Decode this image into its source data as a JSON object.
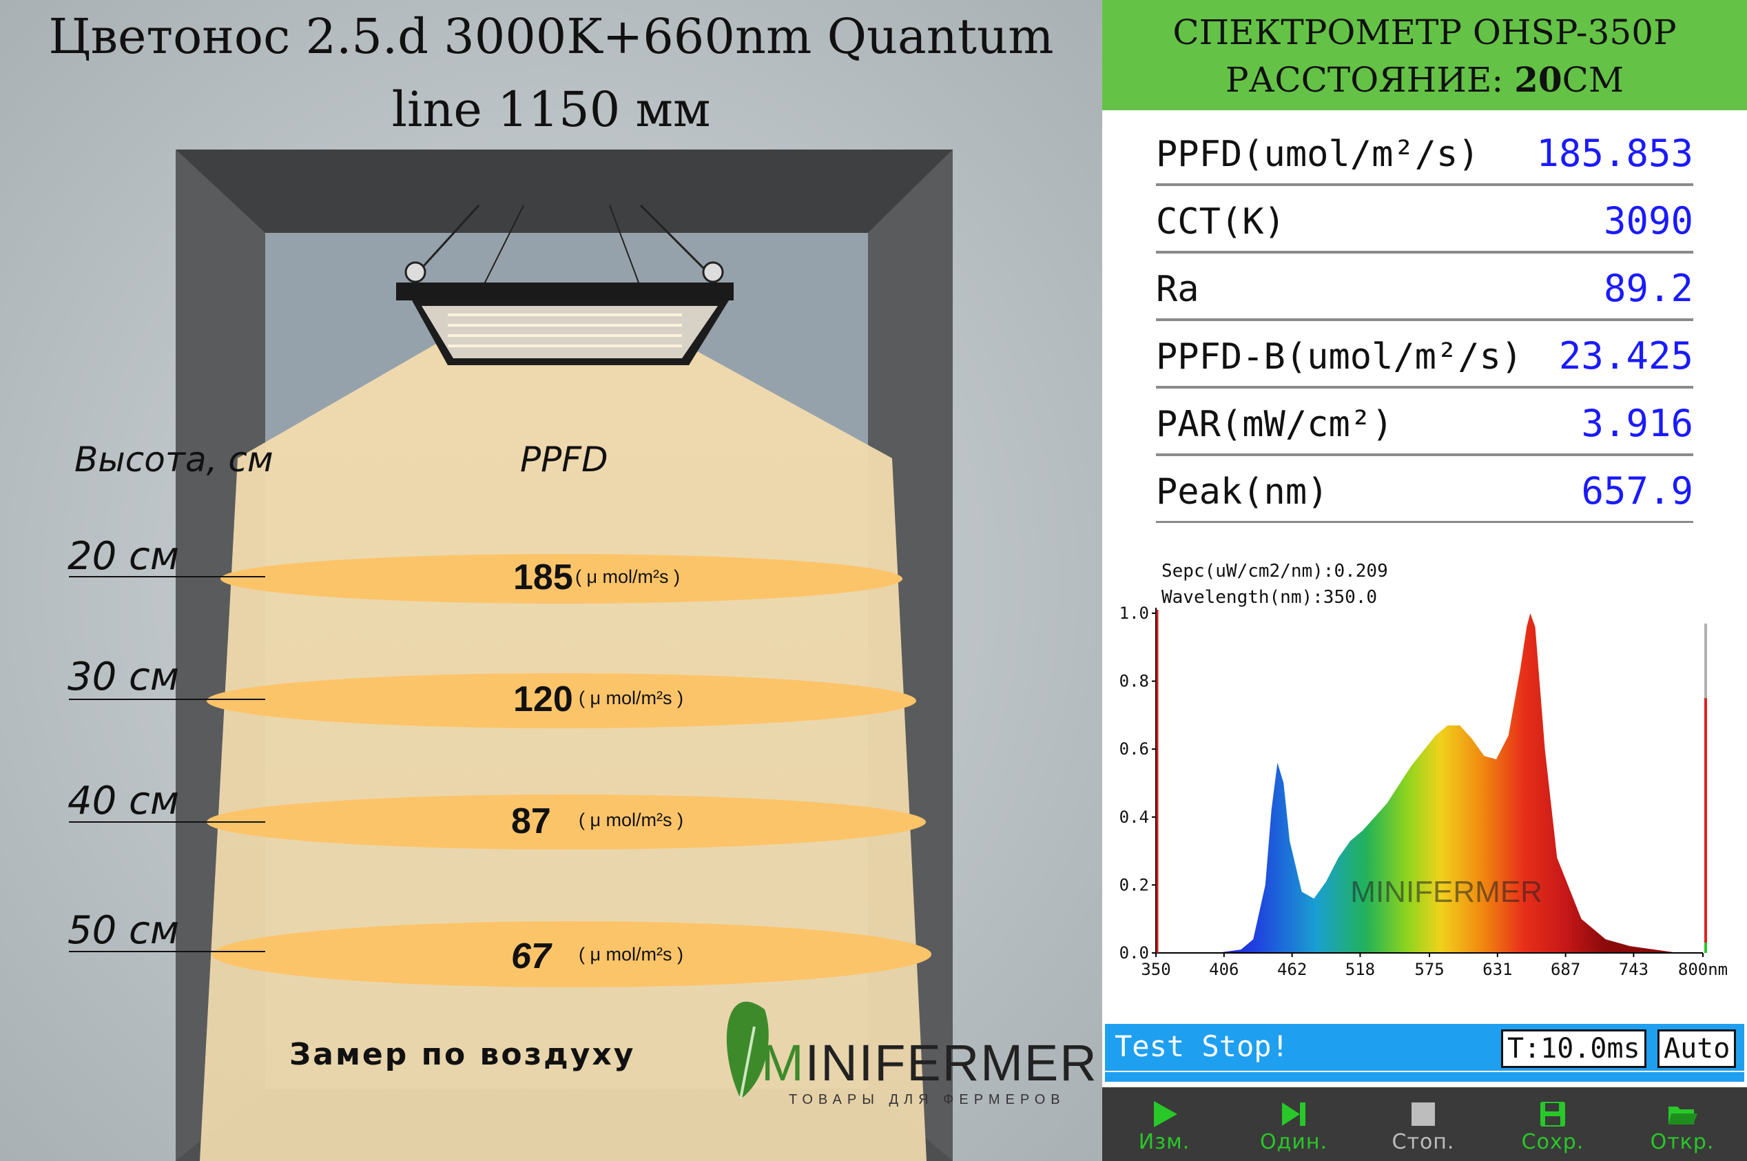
{
  "title": {
    "line1": "Цветонос 2.5.d 3000K+660nm Quantum",
    "line2": "line 1150 мм"
  },
  "left": {
    "height_header": "Высота, см",
    "ppfd_header": "PPFD",
    "unit_label": "( μ mol/m²s )",
    "measurements": [
      {
        "height": "20 см",
        "ppfd": "185"
      },
      {
        "height": "30 см",
        "ppfd": "120"
      },
      {
        "height": "40 см",
        "ppfd": "87"
      },
      {
        "height": "50 см",
        "ppfd": "67"
      }
    ],
    "note": "Замер по воздуху",
    "brand": {
      "first": "M",
      "rest": "INIFERMER",
      "tagline": "ТОВАРЫ ДЛЯ ФЕРМЕРОВ"
    }
  },
  "spectrometer": {
    "header_line1": "СПЕКТРОМЕТР OHSP-350P",
    "header_label": "РАССТОЯНИЕ: ",
    "header_value": "20",
    "header_unit": "СМ",
    "readings": [
      {
        "label": "PPFD(umol/m²/s)",
        "value": "185.853"
      },
      {
        "label": "CCT(K)",
        "value": "3090"
      },
      {
        "label": "Ra",
        "value": "89.2"
      },
      {
        "label": "PPFD-B(umol/m²/s)",
        "value": "23.425"
      },
      {
        "label": "PAR(mW/cm²)",
        "value": "3.916"
      },
      {
        "label": "Peak(nm)",
        "value": "657.9"
      }
    ],
    "cursor_line1": "Sepc(uW/cm2/nm):0.209",
    "cursor_line2": "Wavelength(nm):350.0",
    "status_text": "Test Stop!",
    "time_value": "T:10.0ms",
    "mode_value": "Auto",
    "toolbar": [
      {
        "label": "Изм.",
        "icon": "play-icon",
        "color": "#28c828"
      },
      {
        "label": "Один.",
        "icon": "skip-forward-icon",
        "color": "#28c828"
      },
      {
        "label": "Стоп.",
        "icon": "stop-icon",
        "color": "#bdbdbd"
      },
      {
        "label": "Сохр.",
        "icon": "save-icon",
        "color": "#28c828"
      },
      {
        "label": "Откр.",
        "icon": "folder-open-icon",
        "color": "#28c828"
      }
    ]
  },
  "chart_data": {
    "type": "area",
    "title": "",
    "xlabel": "",
    "ylabel": "",
    "xlim": [
      350,
      800
    ],
    "ylim": [
      0,
      1.0
    ],
    "xticks": [
      "350",
      "406",
      "462",
      "518",
      "575",
      "631",
      "687",
      "743",
      "800nm"
    ],
    "yticks": [
      "0.0",
      "0.2",
      "0.4",
      "0.6",
      "0.8",
      "1.0"
    ],
    "x": [
      350,
      400,
      420,
      430,
      440,
      445,
      450,
      455,
      460,
      470,
      480,
      490,
      500,
      510,
      520,
      540,
      560,
      580,
      590,
      600,
      610,
      620,
      630,
      640,
      650,
      655,
      658,
      662,
      670,
      680,
      700,
      720,
      740,
      760,
      780,
      800
    ],
    "y": [
      0.0,
      0.0,
      0.01,
      0.04,
      0.2,
      0.42,
      0.56,
      0.5,
      0.33,
      0.18,
      0.16,
      0.21,
      0.28,
      0.33,
      0.36,
      0.44,
      0.55,
      0.64,
      0.67,
      0.67,
      0.63,
      0.58,
      0.57,
      0.64,
      0.84,
      0.96,
      1.0,
      0.96,
      0.6,
      0.28,
      0.1,
      0.04,
      0.02,
      0.01,
      0.0,
      0.0
    ],
    "colors": {
      "background": "#ffffff",
      "axis": "#000000"
    }
  }
}
